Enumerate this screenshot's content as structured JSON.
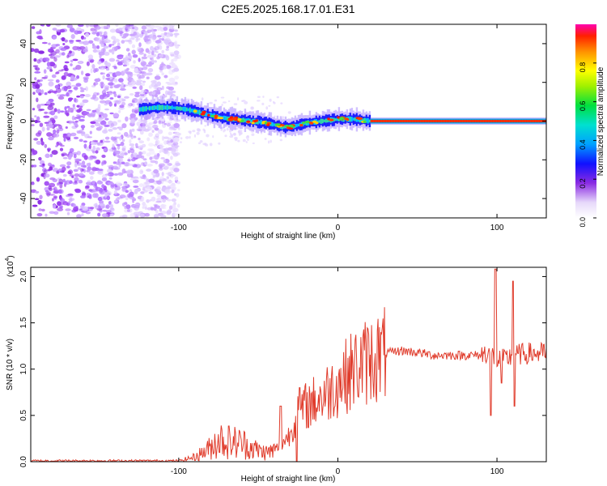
{
  "title": "C2E5.2025.168.17.01.E31",
  "chart_data": [
    {
      "type": "heatmap",
      "name": "spectrogram",
      "xlabel": "Height of straight line (km)",
      "ylabel": "Frequency (Hz)",
      "xlim": [
        -193,
        131
      ],
      "ylim": [
        -50,
        50
      ],
      "xticks": [
        -100,
        0,
        100
      ],
      "yticks": [
        -40,
        -20,
        0,
        20,
        40
      ],
      "signal_track": {
        "x": [
          -125,
          -115,
          -105,
          -95,
          -85,
          -75,
          -65,
          -55,
          -45,
          -40,
          -35,
          -30,
          -25,
          -20,
          -10,
          0,
          5,
          10,
          20,
          40,
          60,
          80,
          100,
          131
        ],
        "freq_hz": [
          6,
          7,
          7,
          6,
          4,
          2,
          1,
          0,
          -1,
          -2,
          -3,
          -3,
          -2,
          -1,
          0,
          1,
          1,
          1,
          0,
          0,
          0,
          0,
          0,
          0
        ]
      },
      "noise_region_x": [
        -193,
        -100
      ],
      "colorbar": {
        "label": "Normalized spectral amplitude",
        "ticks": [
          0.0,
          0.2,
          0.4,
          0.6,
          0.8
        ],
        "range": [
          0,
          1
        ]
      }
    },
    {
      "type": "line",
      "name": "snr",
      "xlabel": "Height of straight line (km)",
      "ylabel": "SNR (10 * v/v)",
      "scale_label": "(x10",
      "scale_exponent": "4",
      "xlim": [
        -193,
        131
      ],
      "ylim": [
        0,
        2.1
      ],
      "xticks": [
        -100,
        0,
        100
      ],
      "yticks": [
        0.0,
        0.5,
        1.0,
        1.5,
        2.0
      ],
      "color": "#e03c2c",
      "envelope": {
        "x": [
          -193,
          -100,
          -90,
          -80,
          -75,
          -70,
          -60,
          -50,
          -45,
          -40,
          -35,
          -30,
          -25,
          -20,
          -15,
          -10,
          0,
          10,
          20,
          30,
          40,
          50,
          60,
          70,
          80,
          90,
          95,
          100,
          105,
          110,
          120,
          131
        ],
        "y": [
          0.01,
          0.01,
          0.05,
          0.15,
          0.25,
          0.22,
          0.2,
          0.12,
          0.1,
          0.12,
          0.2,
          0.3,
          0.55,
          0.6,
          0.65,
          0.7,
          0.85,
          1.0,
          1.1,
          1.17,
          1.2,
          1.18,
          1.15,
          1.15,
          1.15,
          1.15,
          1.2,
          1.1,
          1.1,
          1.15,
          1.17,
          1.17
        ]
      },
      "spikes": [
        {
          "x": -36,
          "y": 0.6
        },
        {
          "x": -26,
          "y": 0.0
        },
        {
          "x": -24,
          "y": 0.8
        },
        {
          "x": 96,
          "y": 0.5
        },
        {
          "x": 99,
          "y": 2.08
        },
        {
          "x": 103,
          "y": 0.85
        },
        {
          "x": 110,
          "y": 1.95
        },
        {
          "x": 111,
          "y": 0.6
        }
      ]
    }
  ]
}
